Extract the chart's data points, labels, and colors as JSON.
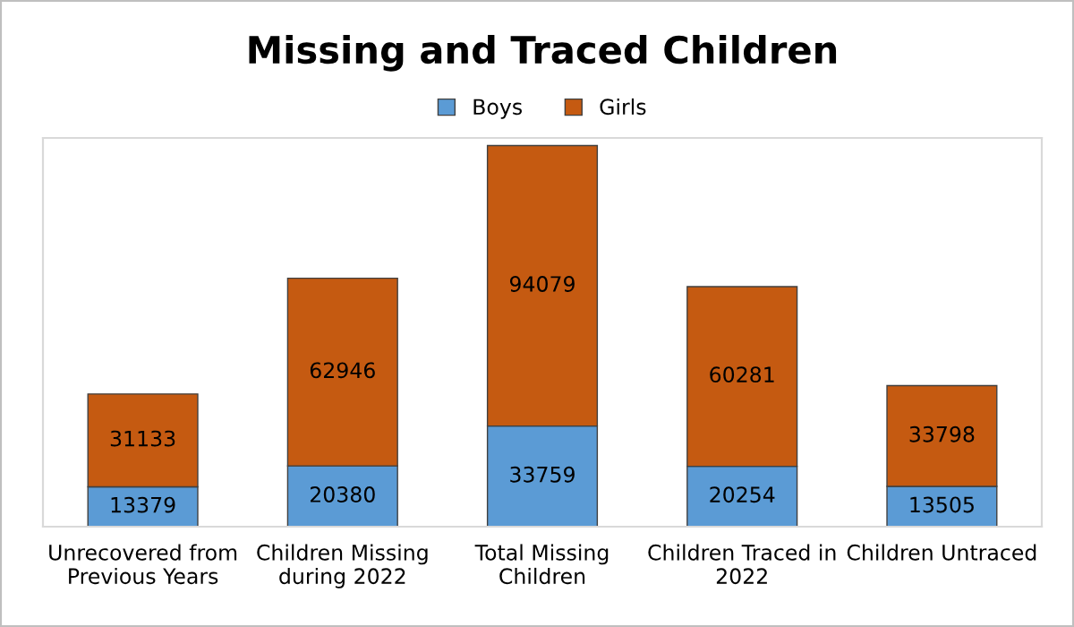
{
  "chart_data": {
    "type": "bar",
    "title": "Missing and Traced Children",
    "stacked": true,
    "data_labels": true,
    "legend": "top",
    "grid": false,
    "tick_labels": "x",
    "categories": [
      "Unrecovered from Previous Years",
      "Children Missing during 2022",
      "Total Missing Children",
      "Children Traced in 2022",
      "Children Untraced"
    ],
    "series": [
      {
        "name": "Boys",
        "color": "#5b9bd5",
        "values": [
          13379,
          20380,
          33759,
          20254,
          13505
        ]
      },
      {
        "name": "Girls",
        "color": "#c55a11",
        "values": [
          31133,
          62946,
          94079,
          60281,
          33798
        ]
      }
    ]
  }
}
